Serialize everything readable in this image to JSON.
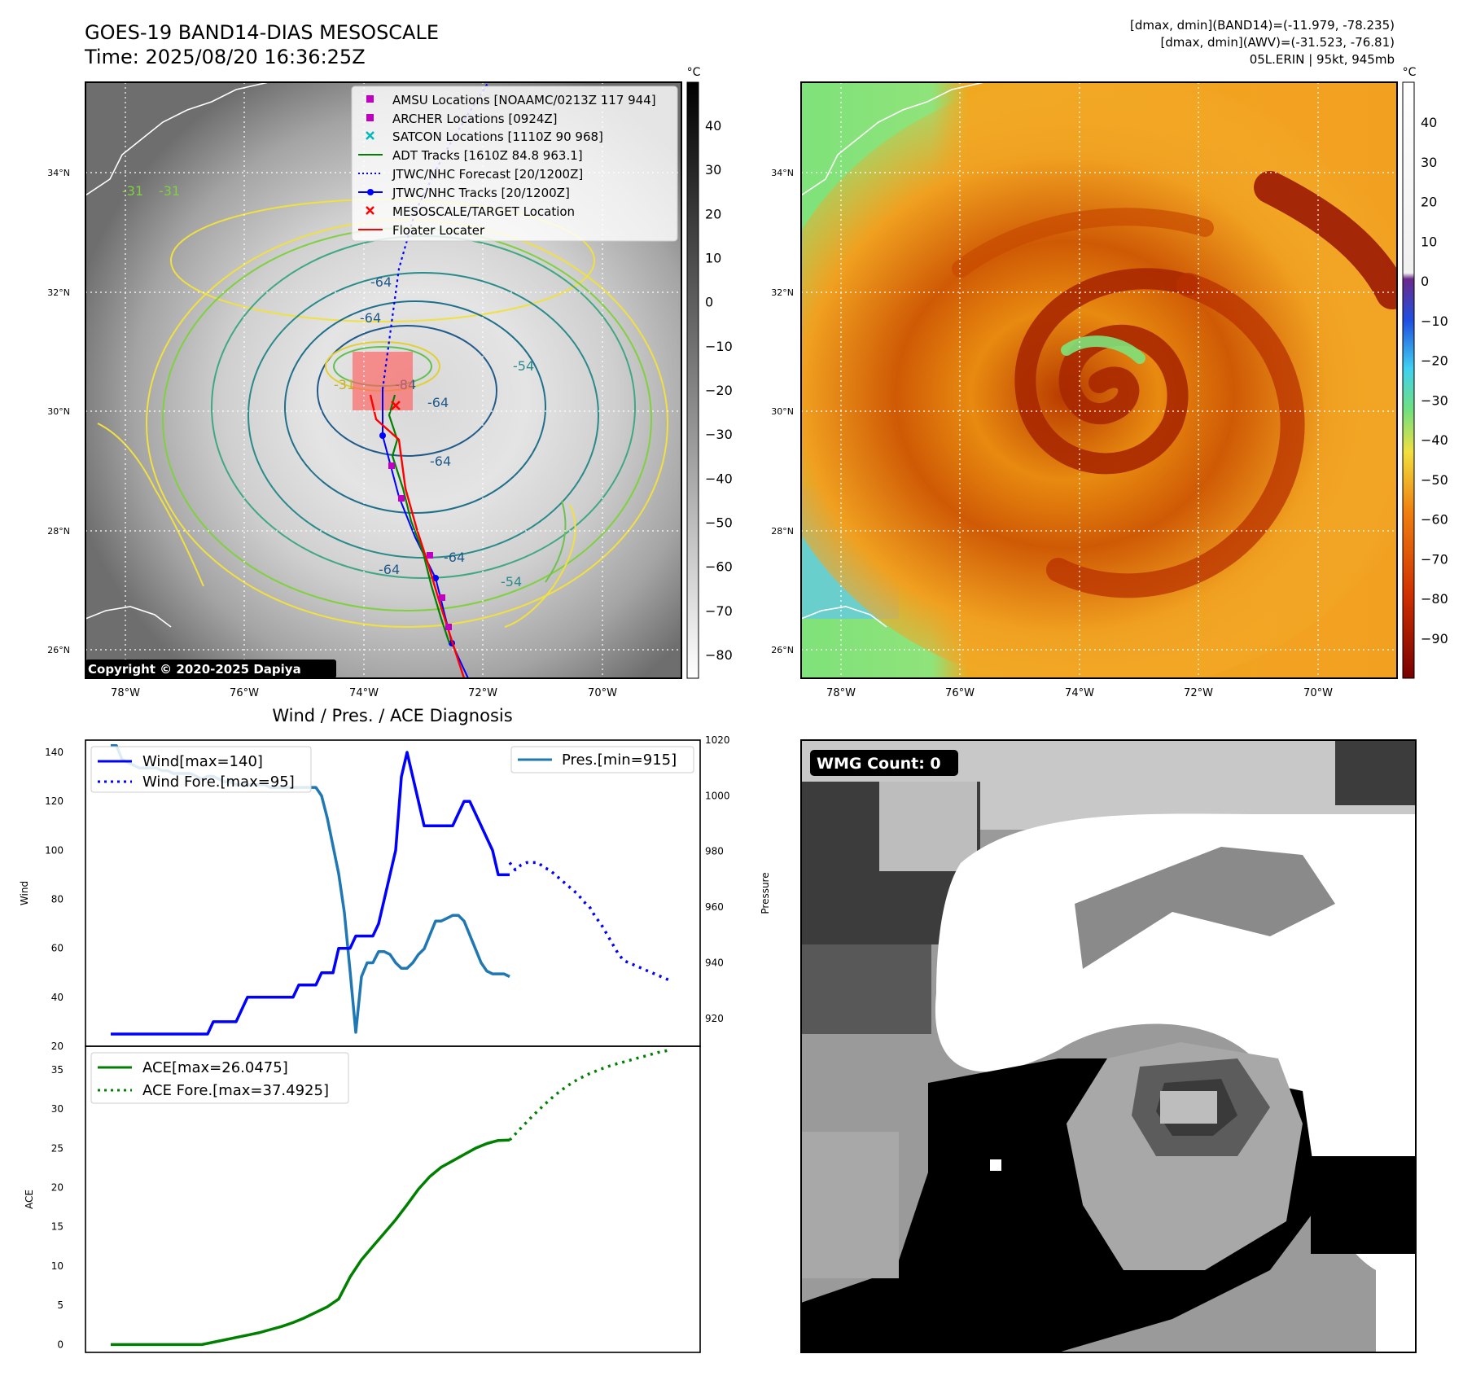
{
  "header": {
    "title_line1": "GOES-19 BAND14-DIAS MESOSCALE",
    "title_line2": "Time: 2025/08/20 16:36:25Z",
    "info_line1": "[dmax, dmin](BAND14)=(-11.979, -78.235)",
    "info_line2": "[dmax, dmin](AWV)=(-31.523, -76.81)",
    "info_line3": "05L.ERIN | 95kt, 945mb"
  },
  "map_axes": {
    "lat_labels": [
      "34°N",
      "32°N",
      "30°N",
      "28°N",
      "26°N"
    ],
    "lon_labels": [
      "78°W",
      "76°W",
      "74°W",
      "72°W",
      "70°W"
    ]
  },
  "panel_ir": {
    "copyright": "Copyright © 2020-2025 Dapiya",
    "contour_labels": [
      "-64",
      "-64",
      "-64",
      "-64",
      "-64",
      "-64",
      "-54",
      "-54",
      "-31",
      "-31",
      "-31",
      "-84"
    ],
    "legend": [
      {
        "label": "AMSU Locations [NOAAMC/0213Z 117 944]",
        "symbol": "square",
        "color": "#c000c0"
      },
      {
        "label": "ARCHER Locations [0924Z]",
        "symbol": "square",
        "color": "#c000c0"
      },
      {
        "label": "SATCON Locations [1110Z 90 968]",
        "symbol": "x",
        "color": "#00b8b8"
      },
      {
        "label": "ADT Tracks [1610Z 84.8 963.1]",
        "symbol": "line",
        "color": "#008000"
      },
      {
        "label": "JTWC/NHC Forecast [20/1200Z]",
        "symbol": "dotted",
        "color": "#0000ff"
      },
      {
        "label": "JTWC/NHC Tracks [20/1200Z]",
        "symbol": "line-dot",
        "color": "#0000ff"
      },
      {
        "label": "MESOSCALE/TARGET Location",
        "symbol": "x",
        "color": "#ff0000"
      },
      {
        "label": "Floater Locater",
        "symbol": "line",
        "color": "#ff0000"
      }
    ],
    "colorbar": {
      "unit": "°C",
      "ticks": [
        "40",
        "30",
        "20",
        "10",
        "0",
        "−10",
        "−20",
        "−30",
        "−40",
        "−50",
        "−60",
        "−70",
        "−80"
      ]
    }
  },
  "panel_wv": {
    "colorbar": {
      "unit": "°C",
      "ticks": [
        "40",
        "30",
        "20",
        "10",
        "0",
        "−10",
        "−20",
        "−30",
        "−40",
        "−50",
        "−60",
        "−70",
        "−80",
        "−90"
      ]
    }
  },
  "panel_wmg": {
    "badge": "WMG Count: 0"
  },
  "chart_data": [
    {
      "type": "line",
      "title": "Wind / Pres. / ACE Diagnosis",
      "ylabel": "Wind",
      "ylim": [
        20,
        145
      ],
      "yticks": [
        "140",
        "120",
        "100",
        "80",
        "60",
        "40",
        "20"
      ],
      "y2label": "Pressure",
      "y2lim": [
        910,
        1020
      ],
      "y2ticks": [
        "1020",
        "1000",
        "980",
        "960",
        "940",
        "920"
      ],
      "grid": false,
      "legend_left": "top-left",
      "legend_right": "top-right",
      "series": [
        {
          "name": "Wind[max=140]",
          "axis": "left",
          "style": "solid",
          "color": "#0000ff",
          "x": [
            0,
            9,
            10,
            11,
            12,
            17,
            18,
            19,
            20,
            22,
            24,
            25,
            26,
            28,
            29,
            30,
            31,
            32,
            33,
            34,
            35,
            36,
            37,
            39,
            40,
            42,
            43,
            46,
            47,
            48,
            50,
            51,
            52,
            53,
            54,
            55,
            56,
            58,
            60,
            62,
            63,
            65,
            67,
            68,
            69,
            70
          ],
          "values": [
            25,
            25,
            25,
            25,
            25,
            25,
            30,
            30,
            30,
            30,
            40,
            40,
            40,
            40,
            40,
            40,
            40,
            40,
            45,
            45,
            45,
            45,
            50,
            50,
            60,
            60,
            65,
            65,
            70,
            80,
            100,
            130,
            140,
            130,
            120,
            110,
            110,
            110,
            110,
            120,
            120,
            110,
            100,
            90,
            90,
            90
          ]
        },
        {
          "name": "Wind Fore.[max=95]",
          "axis": "left",
          "style": "dotted",
          "color": "#0000ff",
          "x": [
            70,
            71,
            72,
            73,
            74,
            75,
            76,
            77,
            78,
            79,
            80,
            81,
            82,
            83,
            84,
            85,
            86,
            87,
            88,
            89,
            90,
            91,
            92,
            93,
            94,
            95,
            96,
            97,
            98
          ],
          "values": [
            95,
            92,
            94,
            95,
            95,
            95,
            93,
            92,
            90,
            88,
            86,
            84,
            82,
            79,
            77,
            73,
            70,
            66,
            62,
            58,
            55,
            54,
            53,
            52,
            51,
            50,
            49,
            48,
            47
          ]
        },
        {
          "name": "Pres.[min=915]",
          "axis": "right",
          "style": "solid",
          "color": "#1f77b4",
          "x": [
            0,
            1,
            2,
            3,
            4,
            5,
            6,
            7,
            8,
            9,
            10,
            11,
            12,
            13,
            14,
            15,
            16,
            17,
            18,
            19,
            20,
            21,
            22,
            23,
            24,
            25,
            26,
            27,
            28,
            29,
            30,
            31,
            32,
            33,
            34,
            35,
            36,
            37,
            38,
            39,
            40,
            41,
            42,
            43,
            44,
            45,
            46,
            47,
            48,
            49,
            50,
            51,
            52,
            53,
            54,
            55,
            56,
            57,
            58,
            59,
            60,
            61,
            62,
            63,
            64,
            65,
            66,
            67,
            68,
            69,
            70
          ],
          "values": [
            1018,
            1018,
            1013,
            1012,
            1011,
            1010,
            1010,
            1010,
            1010,
            1009,
            1009,
            1008,
            1008,
            1008,
            1008,
            1007,
            1006,
            1007,
            1007,
            1006,
            1005,
            1005,
            1004,
            1004,
            1004,
            1004,
            1004,
            1004,
            1003,
            1003,
            1003,
            1003,
            1003,
            1003,
            1003,
            1003,
            1003,
            1000,
            992,
            982,
            972,
            958,
            937,
            915,
            935,
            940,
            940,
            944,
            944,
            943,
            940,
            938,
            938,
            940,
            943,
            945,
            950,
            955,
            955,
            956,
            957,
            957,
            955,
            950,
            945,
            940,
            937,
            936,
            936,
            936,
            935
          ]
        }
      ]
    },
    {
      "type": "line",
      "ylabel": "ACE",
      "ylim": [
        -1,
        38
      ],
      "yticks": [
        "35",
        "30",
        "25",
        "20",
        "15",
        "10",
        "5",
        "0"
      ],
      "grid": false,
      "legend": "top-left",
      "series": [
        {
          "name": "ACE[max=26.0475]",
          "style": "solid",
          "color": "#008000",
          "x": [
            0,
            4,
            8,
            12,
            16,
            18,
            20,
            22,
            24,
            26,
            28,
            30,
            32,
            34,
            36,
            38,
            40,
            42,
            44,
            46,
            48,
            50,
            52,
            54,
            56,
            58,
            60,
            62,
            64,
            66,
            68,
            70
          ],
          "values": [
            0,
            0,
            0,
            0,
            0,
            0.3,
            0.6,
            0.9,
            1.2,
            1.5,
            1.9,
            2.3,
            2.8,
            3.4,
            4.1,
            4.8,
            5.8,
            8.6,
            10.8,
            12.5,
            14.2,
            15.9,
            17.8,
            19.8,
            21.4,
            22.6,
            23.4,
            24.2,
            25.0,
            25.6,
            26.0,
            26.05
          ]
        },
        {
          "name": "ACE Fore.[max=37.4925]",
          "style": "dotted",
          "color": "#008000",
          "x": [
            70,
            72,
            74,
            76,
            78,
            80,
            82,
            84,
            86,
            88,
            90,
            92,
            94,
            96,
            98
          ],
          "values": [
            26.05,
            27.6,
            29.1,
            30.5,
            31.8,
            32.9,
            33.8,
            34.5,
            35.1,
            35.6,
            36.0,
            36.4,
            36.8,
            37.2,
            37.49
          ]
        }
      ]
    }
  ]
}
